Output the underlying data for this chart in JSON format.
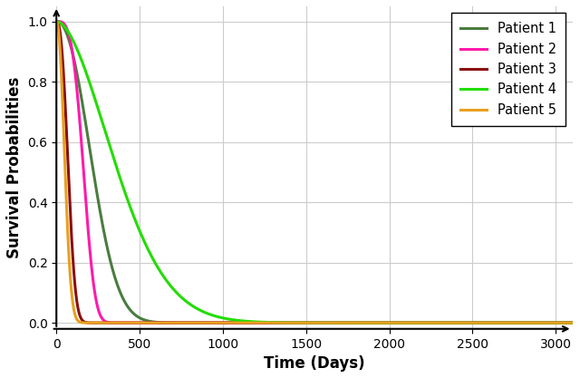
{
  "title": "",
  "xlabel": "Time (Days)",
  "ylabel": "Survival Probabilities",
  "xlim": [
    0,
    3100
  ],
  "ylim": [
    -0.02,
    1.05
  ],
  "xticks": [
    0,
    500,
    1000,
    1500,
    2000,
    2500,
    3000
  ],
  "yticks": [
    0,
    0.2,
    0.4,
    0.6,
    0.8,
    1.0
  ],
  "patients": [
    {
      "label": "Patient 1",
      "color": "#4a7c3f",
      "lambda": 0.0038,
      "k": 2.2
    },
    {
      "label": "Patient 2",
      "color": "#ff1aaa",
      "lambda": 0.0055,
      "k": 3.5
    },
    {
      "label": "Patient 3",
      "color": "#8b1010",
      "lambda": 0.012,
      "k": 2.5
    },
    {
      "label": "Patient 4",
      "color": "#22dd00",
      "lambda": 0.0022,
      "k": 1.8
    },
    {
      "label": "Patient 5",
      "color": "#e8a020",
      "lambda": 0.016,
      "k": 2.2
    }
  ],
  "line_width": 2.2,
  "grid_color": "#cccccc",
  "background_color": "#ffffff",
  "legend_fontsize": 10.5,
  "axis_fontsize": 12,
  "tick_fontsize": 10
}
